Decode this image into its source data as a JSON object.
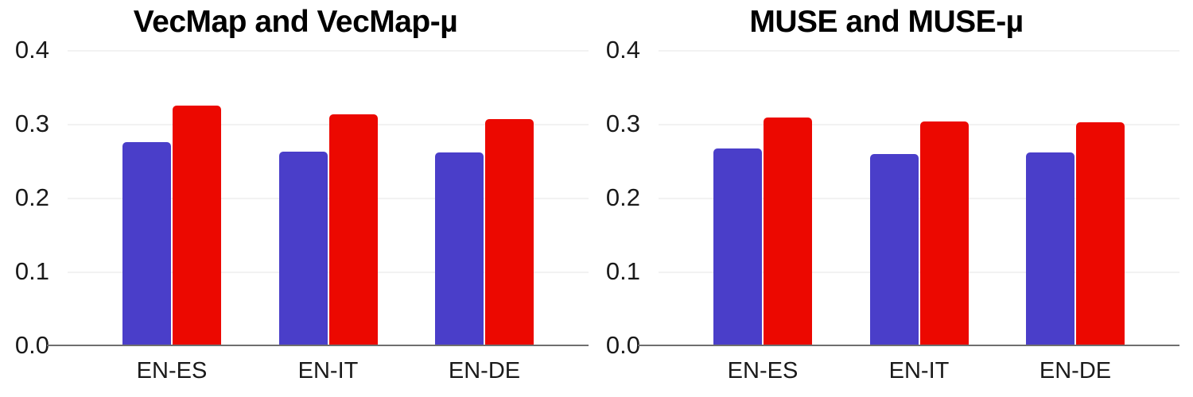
{
  "colors": {
    "blue": "#4A3EC9",
    "red": "#EC0800",
    "gridline": "#F2F2F2",
    "axis": "#6F6F6F",
    "text": "#1A1A1A",
    "title": "#000000",
    "background": "#FFFFFF"
  },
  "y_tick_labels": [
    "0.4",
    "0.3",
    "0.2",
    "0.1",
    "0.0"
  ],
  "chart_data": [
    {
      "type": "bar",
      "title": "VecMap and VecMap-µ",
      "categories": [
        "EN-ES",
        "EN-IT",
        "EN-DE"
      ],
      "series": [
        {
          "name": "VecMap",
          "color_key": "blue",
          "values": [
            0.275,
            0.262,
            0.261
          ]
        },
        {
          "name": "VecMap-µ",
          "color_key": "red",
          "values": [
            0.325,
            0.313,
            0.306
          ]
        }
      ],
      "xlabel": "",
      "ylabel": "",
      "ylim": [
        0,
        0.4
      ],
      "y_ticks": [
        0.0,
        0.1,
        0.2,
        0.3,
        0.4
      ],
      "grid": true,
      "legend": "none"
    },
    {
      "type": "bar",
      "title": "MUSE and MUSE-µ",
      "categories": [
        "EN-ES",
        "EN-IT",
        "EN-DE"
      ],
      "series": [
        {
          "name": "MUSE",
          "color_key": "blue",
          "values": [
            0.267,
            0.259,
            0.261
          ]
        },
        {
          "name": "MUSE-µ",
          "color_key": "red",
          "values": [
            0.309,
            0.303,
            0.302
          ]
        }
      ],
      "xlabel": "",
      "ylabel": "",
      "ylim": [
        0,
        0.4
      ],
      "y_ticks": [
        0.0,
        0.1,
        0.2,
        0.3,
        0.4
      ],
      "grid": true,
      "legend": "none"
    }
  ]
}
